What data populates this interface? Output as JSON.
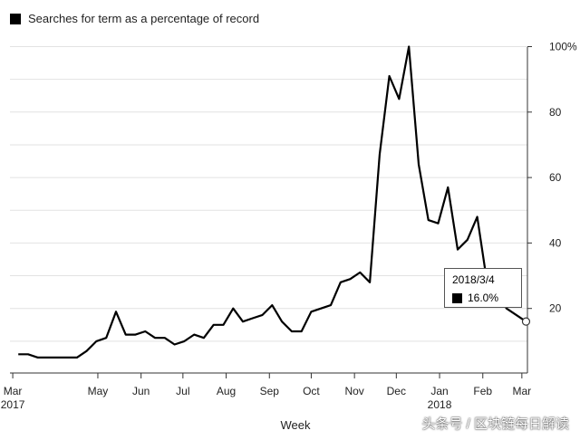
{
  "chart_data": {
    "type": "line",
    "title": "Searches for term as a percentage of record",
    "xlabel": "Week",
    "ylabel": "",
    "ylim": [
      0,
      100
    ],
    "yticks": [
      20,
      40,
      60,
      80,
      100
    ],
    "ytick_labels": [
      "20",
      "40",
      "60",
      "80",
      "100%"
    ],
    "grid": true,
    "legend": "top-left",
    "series": [
      {
        "name": "Searches for term as a percentage of record",
        "color": "#000000",
        "x": [
          "2017-03-05",
          "2017-03-12",
          "2017-03-19",
          "2017-03-26",
          "2017-04-02",
          "2017-04-09",
          "2017-04-16",
          "2017-04-23",
          "2017-04-30",
          "2017-05-07",
          "2017-05-14",
          "2017-05-21",
          "2017-05-28",
          "2017-06-04",
          "2017-06-11",
          "2017-06-18",
          "2017-06-25",
          "2017-07-02",
          "2017-07-09",
          "2017-07-16",
          "2017-07-23",
          "2017-07-30",
          "2017-08-06",
          "2017-08-13",
          "2017-08-20",
          "2017-08-27",
          "2017-09-03",
          "2017-09-10",
          "2017-09-17",
          "2017-09-24",
          "2017-10-01",
          "2017-10-08",
          "2017-10-15",
          "2017-10-22",
          "2017-10-29",
          "2017-11-05",
          "2017-11-12",
          "2017-11-19",
          "2017-11-26",
          "2017-12-03",
          "2017-12-10",
          "2017-12-17",
          "2017-12-24",
          "2017-12-31",
          "2018-01-07",
          "2018-01-14",
          "2018-01-21",
          "2018-01-28",
          "2018-02-04",
          "2018-02-11",
          "2018-02-18",
          "2018-02-25",
          "2018-03-04"
        ],
        "values": [
          6,
          6,
          5,
          5,
          5,
          5,
          5,
          7,
          10,
          11,
          19,
          12,
          12,
          13,
          11,
          11,
          9,
          10,
          12,
          11,
          15,
          15,
          20,
          16,
          17,
          18,
          21,
          16,
          13,
          13,
          19,
          20,
          21,
          28,
          29,
          31,
          28,
          67,
          91,
          84,
          100,
          64,
          47,
          46,
          57,
          38,
          41,
          48,
          28,
          25,
          20,
          18,
          16
        ]
      }
    ],
    "x_ticks": [
      {
        "date": "2017-03-01",
        "label": "Mar",
        "sublabel": "2017"
      },
      {
        "date": "2017-05-01",
        "label": "May",
        "sublabel": ""
      },
      {
        "date": "2017-06-01",
        "label": "Jun",
        "sublabel": ""
      },
      {
        "date": "2017-07-01",
        "label": "Jul",
        "sublabel": ""
      },
      {
        "date": "2017-08-01",
        "label": "Aug",
        "sublabel": ""
      },
      {
        "date": "2017-09-01",
        "label": "Sep",
        "sublabel": ""
      },
      {
        "date": "2017-10-01",
        "label": "Oct",
        "sublabel": ""
      },
      {
        "date": "2017-11-01",
        "label": "Nov",
        "sublabel": ""
      },
      {
        "date": "2017-12-01",
        "label": "Dec",
        "sublabel": ""
      },
      {
        "date": "2018-01-01",
        "label": "Jan",
        "sublabel": "2018"
      },
      {
        "date": "2018-02-01",
        "label": "Feb",
        "sublabel": ""
      },
      {
        "date": "2018-03-01",
        "label": "Mar",
        "sublabel": ""
      }
    ],
    "tooltip": {
      "date": "2018/3/4",
      "value": "16.0%"
    }
  },
  "watermark": "头条号 / 区块链每日解读"
}
